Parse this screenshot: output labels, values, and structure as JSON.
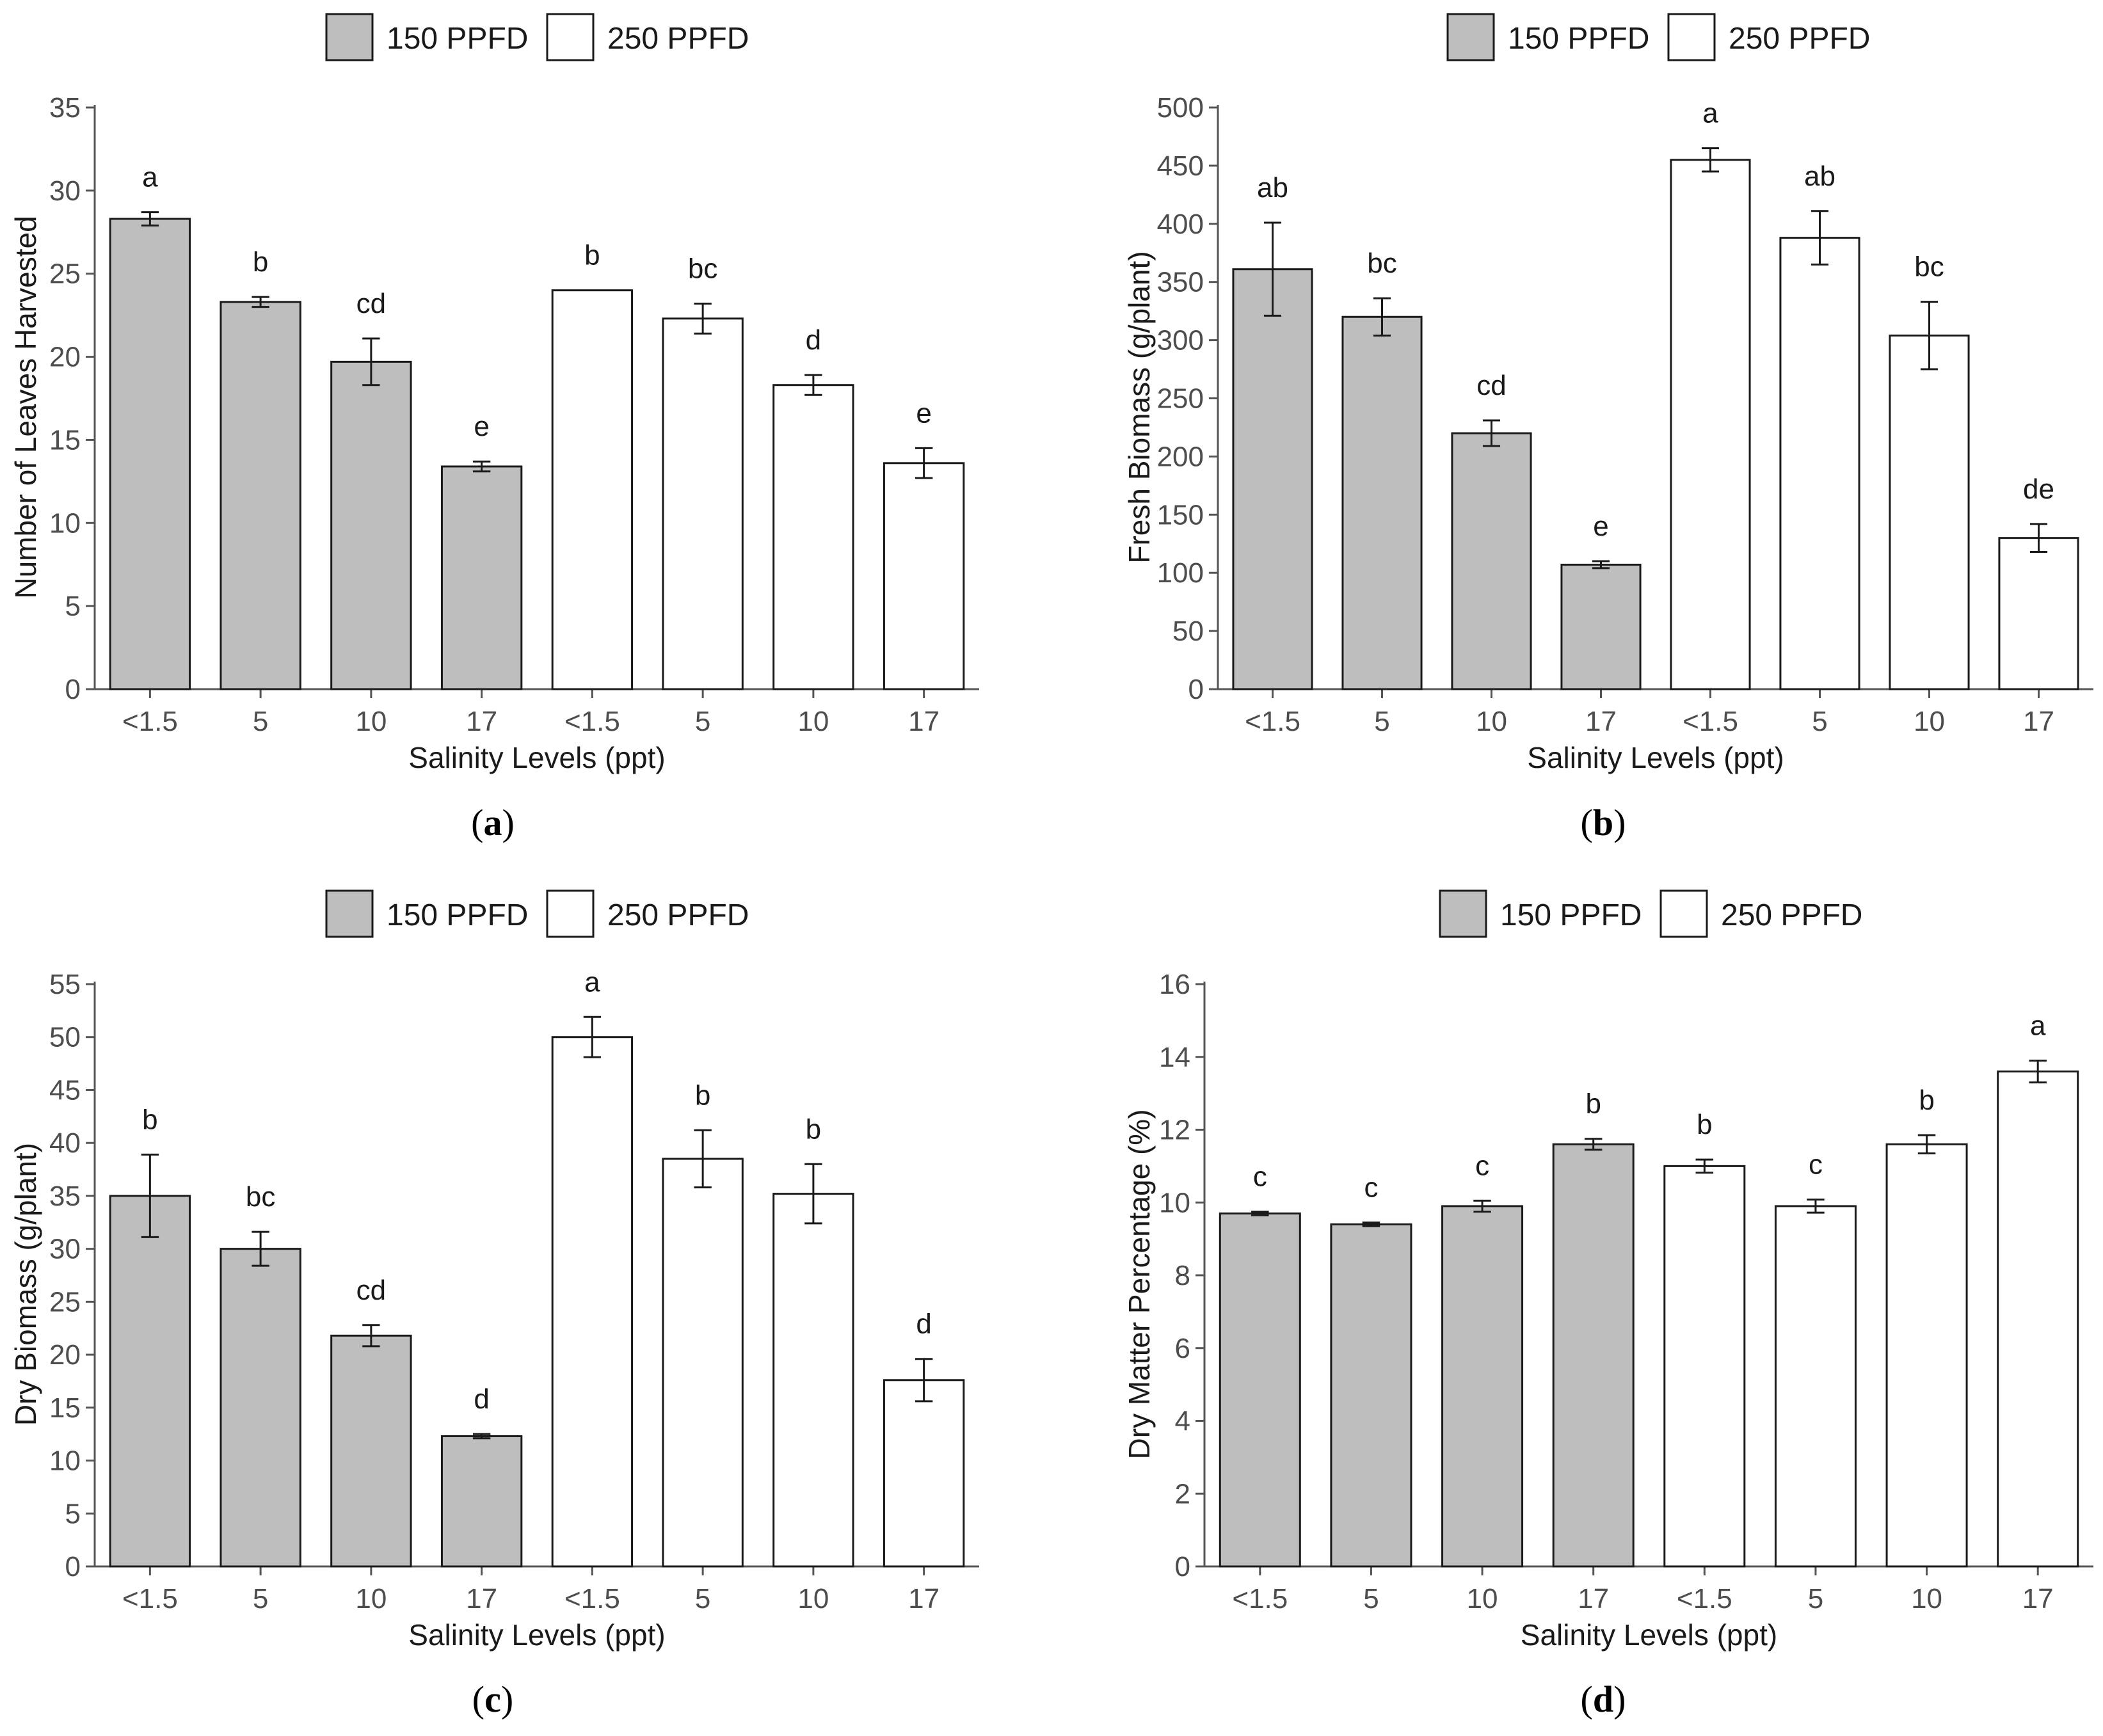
{
  "colors": {
    "series_150": "#bebebe",
    "series_250": "#ffffff",
    "stroke": "#1a1a1a",
    "axis": "#555555"
  },
  "chart_data": [
    {
      "id": "a",
      "type": "bar",
      "caption": "a",
      "xlabel": "Salinity Levels (ppt)",
      "ylabel": "Number of Leaves Harvested",
      "ylim": [
        0,
        35
      ],
      "yticks": [
        0,
        5,
        10,
        15,
        20,
        25,
        30,
        35
      ],
      "legend": {
        "placement": "top",
        "entries": [
          "150 PPFD",
          "250 PPFD"
        ]
      },
      "categories": [
        "<1.5",
        "5",
        "10",
        "17",
        "<1.5",
        "5",
        "10",
        "17"
      ],
      "series": [
        {
          "name": "150 PPFD",
          "positions": [
            0,
            1,
            2,
            3
          ],
          "values": [
            28.3,
            23.3,
            19.7,
            13.4
          ],
          "errors": [
            0.4,
            0.3,
            1.4,
            0.3
          ],
          "letters": [
            "a",
            "b",
            "cd",
            "e"
          ]
        },
        {
          "name": "250 PPFD",
          "positions": [
            4,
            5,
            6,
            7
          ],
          "values": [
            24.0,
            22.3,
            18.3,
            13.6
          ],
          "errors": [
            0,
            0.9,
            0.6,
            0.9
          ],
          "letters": [
            "b",
            "bc",
            "d",
            "e"
          ]
        }
      ]
    },
    {
      "id": "b",
      "type": "bar",
      "caption": "b",
      "xlabel": "Salinity Levels (ppt)",
      "ylabel": "Fresh Biomass (g/plant)",
      "ylim": [
        0,
        500
      ],
      "yticks": [
        0,
        50,
        100,
        150,
        200,
        250,
        300,
        350,
        400,
        450,
        500
      ],
      "legend": {
        "placement": "top",
        "entries": [
          "150 PPFD",
          "250 PPFD"
        ]
      },
      "categories": [
        "<1.5",
        "5",
        "10",
        "17",
        "<1.5",
        "5",
        "10",
        "17"
      ],
      "series": [
        {
          "name": "150 PPFD",
          "positions": [
            0,
            1,
            2,
            3
          ],
          "values": [
            361,
            320,
            220,
            107
          ],
          "errors": [
            40,
            16,
            11,
            3
          ],
          "letters": [
            "ab",
            "bc",
            "cd",
            "e"
          ]
        },
        {
          "name": "250 PPFD",
          "positions": [
            4,
            5,
            6,
            7
          ],
          "values": [
            455,
            388,
            304,
            130
          ],
          "errors": [
            10,
            23,
            29,
            12
          ],
          "letters": [
            "a",
            "ab",
            "bc",
            "de"
          ]
        }
      ]
    },
    {
      "id": "c",
      "type": "bar",
      "caption": "c",
      "xlabel": "Salinity Levels (ppt)",
      "ylabel": "Dry Biomass (g/plant)",
      "ylim": [
        0,
        55
      ],
      "yticks": [
        0,
        5,
        10,
        15,
        20,
        25,
        30,
        35,
        40,
        45,
        50,
        55
      ],
      "legend": {
        "placement": "top",
        "entries": [
          "150 PPFD",
          "250 PPFD"
        ]
      },
      "categories": [
        "<1.5",
        "5",
        "10",
        "17",
        "<1.5",
        "5",
        "10",
        "17"
      ],
      "series": [
        {
          "name": "150 PPFD",
          "positions": [
            0,
            1,
            2,
            3
          ],
          "values": [
            35.0,
            30.0,
            21.8,
            12.3
          ],
          "errors": [
            3.9,
            1.6,
            1.0,
            0.2
          ],
          "letters": [
            "b",
            "bc",
            "cd",
            "d"
          ]
        },
        {
          "name": "250 PPFD",
          "positions": [
            4,
            5,
            6,
            7
          ],
          "values": [
            50.0,
            38.5,
            35.2,
            17.6
          ],
          "errors": [
            1.9,
            2.7,
            2.8,
            2.0
          ],
          "letters": [
            "a",
            "b",
            "b",
            "d"
          ]
        }
      ]
    },
    {
      "id": "d",
      "type": "bar",
      "caption": "d",
      "xlabel": "Salinity Levels (ppt)",
      "ylabel": "Dry Matter Percentage (%)",
      "ylim": [
        0,
        16
      ],
      "yticks": [
        0,
        2,
        4,
        6,
        8,
        10,
        12,
        14,
        16
      ],
      "legend": {
        "placement": "top",
        "entries": [
          "150 PPFD",
          "250 PPFD"
        ]
      },
      "categories": [
        "<1.5",
        "5",
        "10",
        "17",
        "<1.5",
        "5",
        "10",
        "17"
      ],
      "series": [
        {
          "name": "150 PPFD",
          "positions": [
            0,
            1,
            2,
            3
          ],
          "values": [
            9.7,
            9.4,
            9.9,
            11.6
          ],
          "errors": [
            0.05,
            0.05,
            0.15,
            0.15
          ],
          "letters": [
            "c",
            "c",
            "c",
            "b"
          ]
        },
        {
          "name": "250 PPFD",
          "positions": [
            4,
            5,
            6,
            7
          ],
          "values": [
            11.0,
            9.9,
            11.6,
            13.6
          ],
          "errors": [
            0.18,
            0.18,
            0.25,
            0.3
          ],
          "letters": [
            "b",
            "c",
            "b",
            "a"
          ]
        }
      ]
    }
  ]
}
